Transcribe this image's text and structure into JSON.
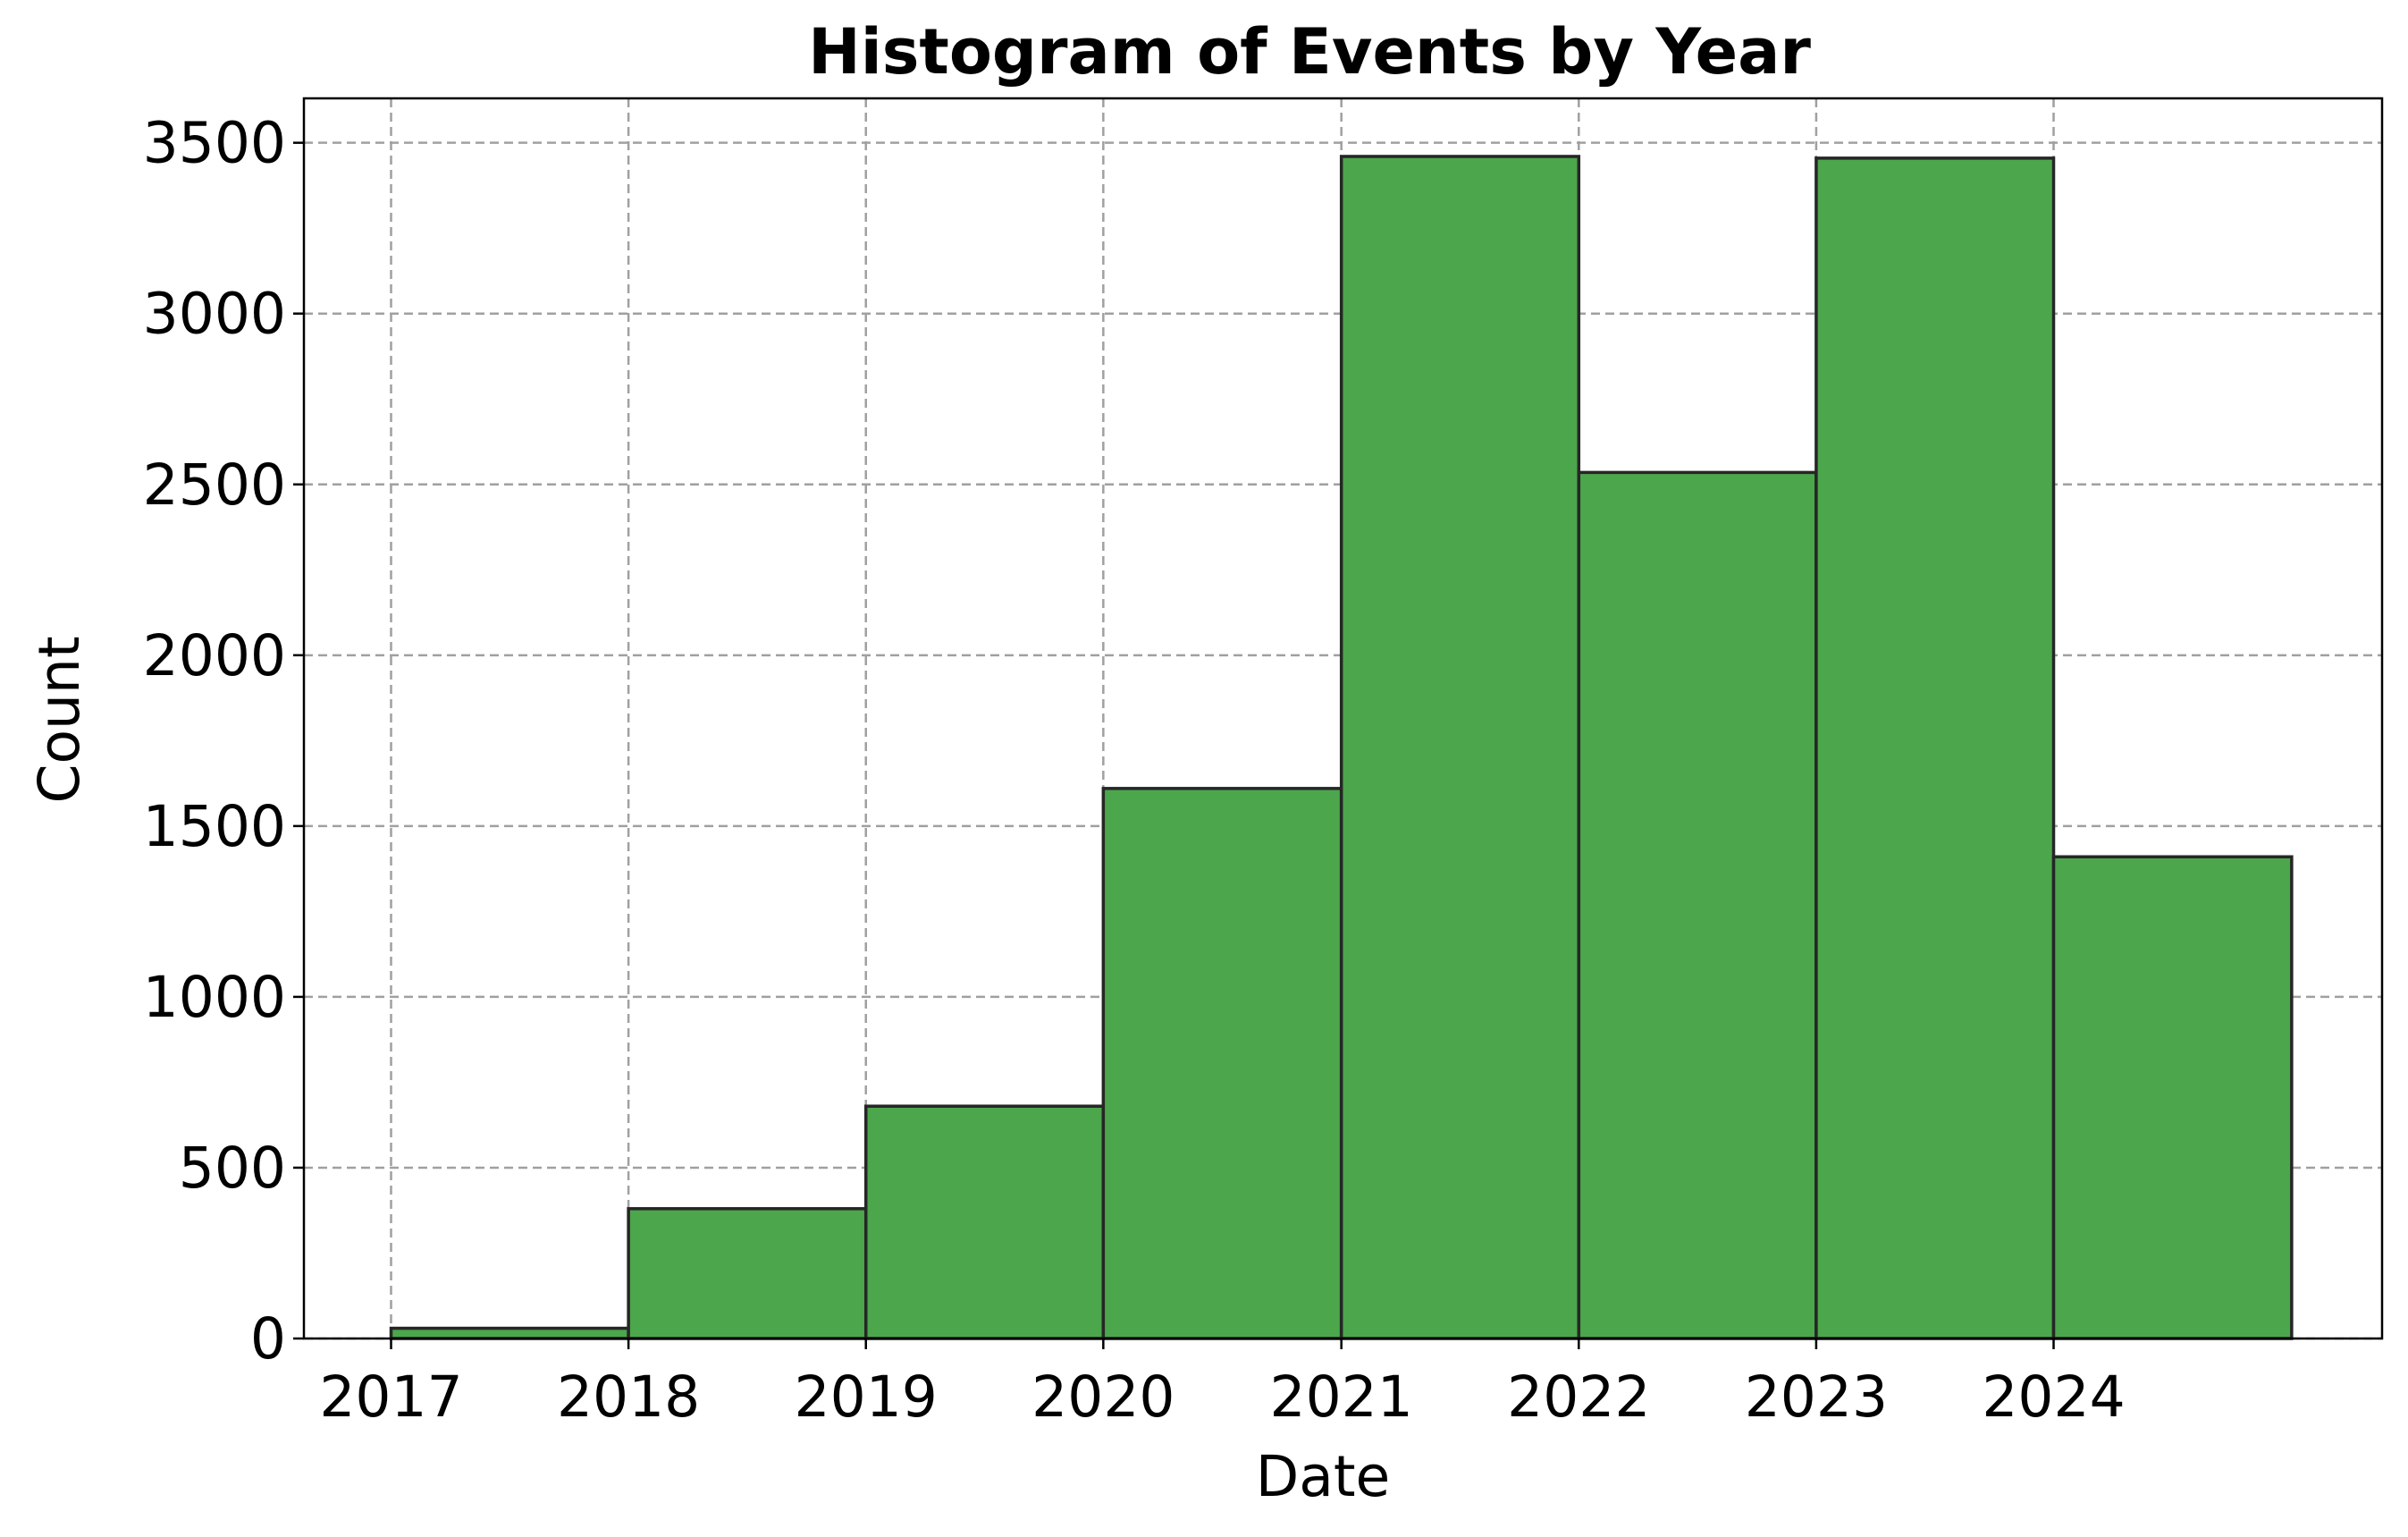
{
  "chart_data": {
    "type": "bar",
    "subtype": "histogram",
    "title": "Histogram of Events by Year",
    "xlabel": "Date",
    "ylabel": "Count",
    "x_ticks": [
      "2017",
      "2018",
      "2019",
      "2020",
      "2021",
      "2022",
      "2023",
      "2024"
    ],
    "bins": [
      {
        "start": "2017-01-01",
        "end": "2018-01-01",
        "count": 30
      },
      {
        "start": "2018-01-01",
        "end": "2019-01-01",
        "count": 380
      },
      {
        "start": "2019-01-01",
        "end": "2020-01-01",
        "count": 680
      },
      {
        "start": "2020-01-01",
        "end": "2021-01-01",
        "count": 1610
      },
      {
        "start": "2021-01-01",
        "end": "2022-01-01",
        "count": 3460
      },
      {
        "start": "2022-01-01",
        "end": "2023-01-01",
        "count": 2535
      },
      {
        "start": "2023-01-01",
        "end": "2024-01-01",
        "count": 3455
      },
      {
        "start": "2024-01-01",
        "end": "2025-01-01",
        "count": 1410
      }
    ],
    "y_ticks": [
      0,
      500,
      1000,
      1500,
      2000,
      2500,
      3000,
      3500
    ],
    "ylim": [
      0,
      3630
    ],
    "xlim": [
      "2016-08-20",
      "2025-05-20"
    ],
    "grid": true,
    "colors": {
      "bar_fill": "#4ca64c",
      "bar_edge": "#262626",
      "grid": "#a0a0a0"
    }
  }
}
